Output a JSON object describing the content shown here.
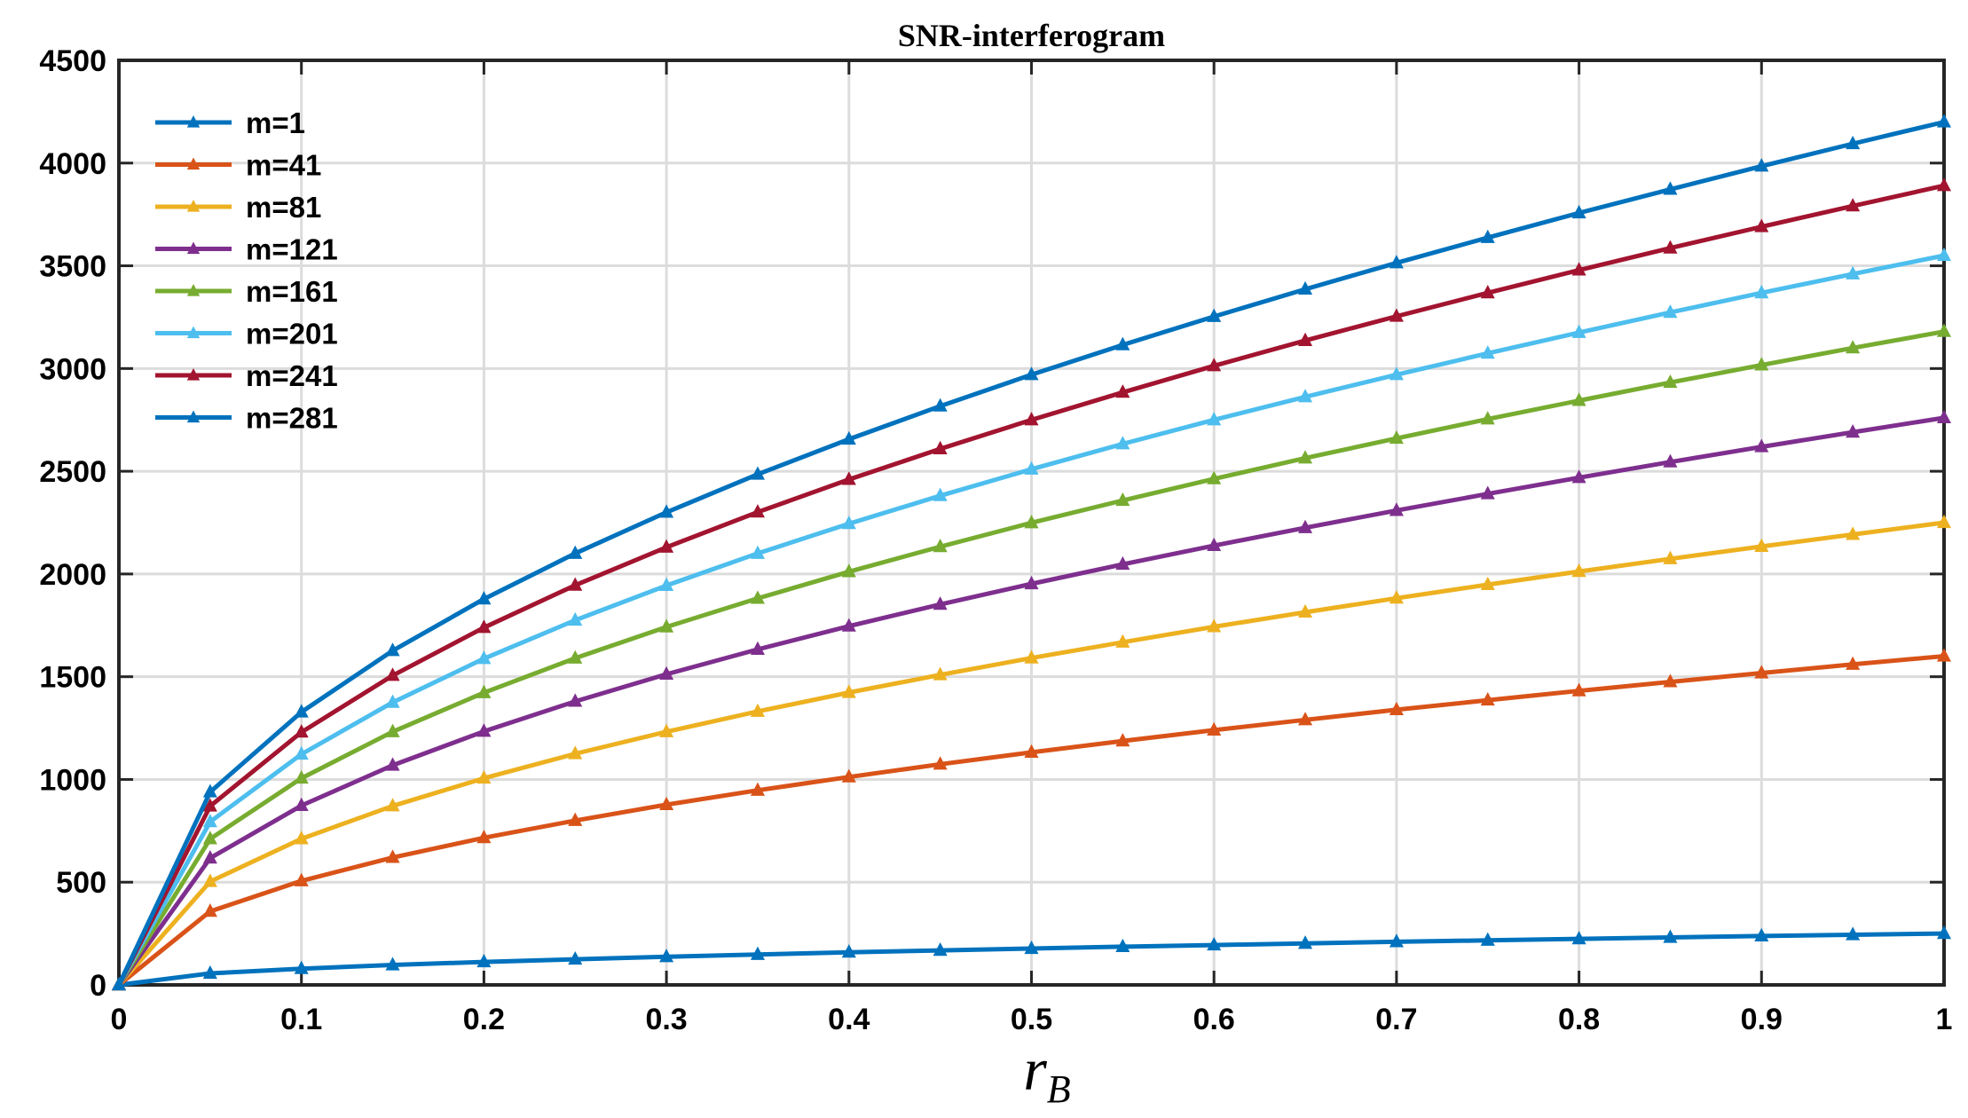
{
  "chart_data": {
    "type": "line",
    "title": "SNR-interferogram",
    "xlabel": "r",
    "xlabel_subscript": "B",
    "ylabel": "",
    "xlim": [
      0,
      1
    ],
    "ylim": [
      0,
      4500
    ],
    "xticks": [
      0,
      0.1,
      0.2,
      0.3,
      0.4,
      0.5,
      0.6,
      0.7,
      0.8,
      0.9,
      1
    ],
    "xtick_labels": [
      "0",
      "0.1",
      "0.2",
      "0.3",
      "0.4",
      "0.5",
      "0.6",
      "0.7",
      "0.8",
      "0.9",
      "1"
    ],
    "yticks": [
      0,
      500,
      1000,
      1500,
      2000,
      2500,
      3000,
      3500,
      4000,
      4500
    ],
    "ytick_labels": [
      "0",
      "500",
      "1000",
      "1500",
      "2000",
      "2500",
      "3000",
      "3500",
      "4000",
      "4500"
    ],
    "grid": true,
    "legend_position": "top-left",
    "marker": "triangle",
    "x": [
      0,
      0.05,
      0.1,
      0.15,
      0.2,
      0.25,
      0.3,
      0.35,
      0.4,
      0.45,
      0.5,
      0.55,
      0.6,
      0.65,
      0.7,
      0.75,
      0.8,
      0.85,
      0.9,
      0.95,
      1
    ],
    "series": [
      {
        "name": "m=1",
        "color": "#0072BD",
        "values": [
          0,
          56,
          79,
          97,
          112,
          125,
          137,
          148,
          159,
          168,
          177,
          186,
          194,
          202,
          210,
          217,
          224,
          231,
          238,
          244,
          250
        ]
      },
      {
        "name": "m=41",
        "color": "#D95319",
        "values": [
          0,
          358,
          506,
          620,
          716,
          800,
          877,
          947,
          1012,
          1074,
          1132,
          1187,
          1240,
          1290,
          1339,
          1386,
          1431,
          1475,
          1518,
          1560,
          1600
        ]
      },
      {
        "name": "m=81",
        "color": "#EDB120",
        "values": [
          0,
          503,
          711,
          871,
          1006,
          1125,
          1232,
          1331,
          1423,
          1509,
          1591,
          1668,
          1743,
          1814,
          1882,
          1948,
          2012,
          2074,
          2134,
          2192,
          2250
        ]
      },
      {
        "name": "m=121",
        "color": "#7E2F8E",
        "values": [
          0,
          617,
          873,
          1069,
          1234,
          1380,
          1512,
          1633,
          1746,
          1852,
          1952,
          2047,
          2138,
          2225,
          2309,
          2390,
          2469,
          2545,
          2619,
          2690,
          2760
        ]
      },
      {
        "name": "m=161",
        "color": "#77AC30",
        "values": [
          0,
          711,
          1006,
          1232,
          1422,
          1590,
          1742,
          1881,
          2011,
          2133,
          2249,
          2358,
          2463,
          2564,
          2660,
          2754,
          2844,
          2932,
          3017,
          3100,
          3180
        ]
      },
      {
        "name": "m=201",
        "color": "#4DBEEE",
        "values": [
          0,
          794,
          1123,
          1375,
          1588,
          1775,
          1944,
          2100,
          2245,
          2381,
          2510,
          2633,
          2750,
          2862,
          2970,
          3074,
          3175,
          3273,
          3368,
          3460,
          3550
        ]
      },
      {
        "name": "m=241",
        "color": "#A2142F",
        "values": [
          0,
          870,
          1230,
          1506,
          1739,
          1945,
          2130,
          2301,
          2460,
          2609,
          2750,
          2884,
          3013,
          3136,
          3254,
          3368,
          3479,
          3586,
          3690,
          3791,
          3890
        ]
      },
      {
        "name": "m=281",
        "color": "#0072BD",
        "values": [
          0,
          939,
          1328,
          1627,
          1878,
          2100,
          2300,
          2485,
          2656,
          2817,
          2970,
          3115,
          3253,
          3386,
          3514,
          3637,
          3757,
          3872,
          3985,
          4094,
          4200
        ]
      }
    ]
  }
}
